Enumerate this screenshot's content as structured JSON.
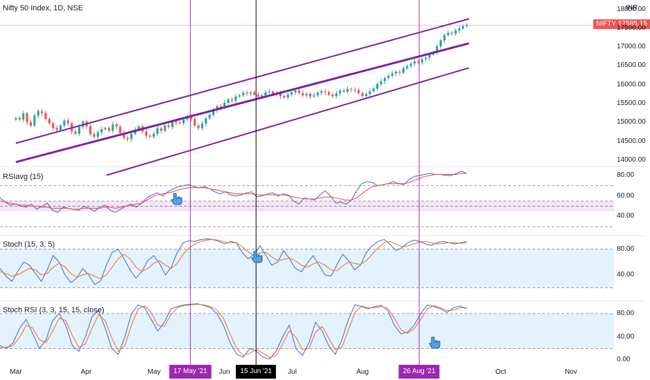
{
  "chart_data": [
    {
      "type": "candlestick",
      "title": "Nifty 50 Index, 1D, NSE",
      "symbol_label": "NIFTY",
      "last_price_label": "17585.15",
      "y_unit_label": "INR",
      "yticks": [
        "18000.00",
        "17500.00",
        "17000.00",
        "16500.00",
        "16000.00",
        "15500.00",
        "15000.00",
        "14500.00",
        "14000.00"
      ],
      "ytick_values": [
        18000,
        17500,
        17000,
        16500,
        16000,
        15500,
        15000,
        14500,
        14000
      ],
      "ylim": [
        13850,
        18250
      ],
      "x_labels": [
        "Mar",
        "Apr",
        "May",
        "Jun",
        "Jul",
        "Aug",
        "Oct",
        "Nov"
      ],
      "close_series": [
        15120,
        15080,
        15240,
        15010,
        14920,
        15180,
        15300,
        15250,
        15090,
        14980,
        14850,
        14800,
        14920,
        15050,
        14980,
        14760,
        14700,
        14880,
        15020,
        14900,
        14690,
        14620,
        14740,
        14820,
        14850,
        14780,
        14950,
        14890,
        14720,
        14590,
        14560,
        14700,
        14810,
        14900,
        14760,
        14650,
        14620,
        14700,
        14850,
        14780,
        14920,
        14880,
        15030,
        15000,
        14980,
        15080,
        15150,
        15090,
        14920,
        14850,
        14970,
        15110,
        15200,
        15320,
        15430,
        15390,
        15520,
        15610,
        15580,
        15690,
        15720,
        15790,
        15770,
        15800,
        15740,
        15680,
        15720,
        15800,
        15820,
        15750,
        15780,
        15700,
        15660,
        15740,
        15800,
        15850,
        15780,
        15720,
        15760,
        15690,
        15720,
        15790,
        15830,
        15810,
        15740,
        15700,
        15770,
        15850,
        15820,
        15890,
        15880,
        15860,
        15780,
        15700,
        15760,
        15830,
        15900,
        16020,
        16100,
        16180,
        16240,
        16300,
        16350,
        16320,
        16440,
        16500,
        16560,
        16620,
        16590,
        16680,
        16720,
        16800,
        16850,
        17020,
        17180,
        17320,
        17380,
        17360,
        17440,
        17500,
        17560,
        17585
      ],
      "channels": [
        {
          "name": "upper",
          "start": [
            14450,
            "2021-03-01"
          ],
          "end": [
            17750,
            "2021-09-17"
          ]
        },
        {
          "name": "middle",
          "start": [
            13950,
            "2021-03-01"
          ],
          "end": [
            17100,
            "2021-09-17"
          ]
        },
        {
          "name": "lower",
          "start": [
            13600,
            "2021-04-10"
          ],
          "end": [
            16450,
            "2021-09-17"
          ]
        }
      ],
      "markers": [
        {
          "label": "17 May '21",
          "date": "2021-05-17",
          "color": "#9c27b0"
        },
        {
          "label": "15 Jun '21",
          "date": "2021-06-15",
          "color": "#000000"
        },
        {
          "label": "26 Aug '21",
          "date": "2021-08-26",
          "color": "#9c27b0"
        }
      ],
      "colors": {
        "up": "#26a69a",
        "down": "#ef5350",
        "channel": "#7b1fa2",
        "last_price": "#ef5350"
      }
    },
    {
      "type": "line",
      "title": "RSIavg (15)",
      "yticks": [
        "80.00",
        "60.00",
        "40.00"
      ],
      "ytick_values": [
        80,
        60,
        40
      ],
      "ylim": [
        22,
        88
      ],
      "bands": [
        30,
        50,
        55,
        70
      ],
      "series": [
        {
          "color": "#5b6ad0",
          "values": [
            58,
            54,
            51,
            52,
            50,
            49,
            52,
            47,
            50,
            53,
            46,
            44,
            49,
            48,
            47,
            46,
            50,
            48,
            45,
            49,
            51,
            46,
            44,
            47,
            50,
            52,
            49,
            53,
            58,
            61,
            63,
            60,
            64,
            67,
            69,
            70,
            71,
            69,
            68,
            69,
            67,
            64,
            62,
            64,
            61,
            60,
            61,
            63,
            64,
            59,
            60,
            62,
            63,
            60,
            62,
            61,
            55,
            52,
            58,
            57,
            56,
            61,
            65,
            60,
            53,
            54,
            52,
            56,
            65,
            72,
            74,
            73,
            70,
            71,
            72,
            74,
            72,
            71,
            76,
            79,
            80,
            81,
            82,
            81,
            81,
            80,
            80,
            82,
            84,
            82
          ]
        },
        {
          "color": "#ef5350",
          "values": [
            55,
            54,
            53,
            52,
            51,
            51,
            50,
            50,
            49,
            49,
            48,
            48,
            48,
            48,
            47,
            47,
            48,
            48,
            48,
            48,
            49,
            49,
            48,
            49,
            50,
            51,
            52,
            53,
            56,
            59,
            61,
            62,
            63,
            64,
            66,
            67,
            68,
            68,
            68,
            68,
            67,
            66,
            65,
            64,
            63,
            62,
            62,
            62,
            62,
            61,
            61,
            61,
            61,
            61,
            61,
            60,
            59,
            58,
            57,
            57,
            57,
            58,
            59,
            59,
            58,
            57,
            56,
            56,
            58,
            62,
            66,
            69,
            70,
            71,
            72,
            72,
            72,
            72,
            73,
            75,
            77,
            79,
            80,
            81,
            81,
            81,
            81,
            81,
            82,
            82
          ]
        }
      ]
    },
    {
      "type": "line",
      "title": "Stoch (15, 3, 5)",
      "yticks": [
        "80.00",
        "40.00"
      ],
      "ytick_values": [
        80,
        40
      ],
      "ylim": [
        0,
        100
      ],
      "bands": [
        20,
        80
      ],
      "series": [
        {
          "color": "#5b6ad0",
          "values": [
            50,
            38,
            30,
            45,
            60,
            55,
            42,
            30,
            48,
            70,
            60,
            40,
            28,
            35,
            50,
            40,
            25,
            30,
            55,
            75,
            80,
            65,
            48,
            35,
            45,
            62,
            70,
            58,
            40,
            52,
            75,
            90,
            93,
            92,
            95,
            96,
            95,
            92,
            88,
            92,
            90,
            75,
            65,
            72,
            85,
            70,
            55,
            60,
            78,
            65,
            50,
            45,
            58,
            70,
            55,
            40,
            38,
            55,
            72,
            62,
            48,
            55,
            75,
            85,
            92,
            95,
            88,
            78,
            82,
            90,
            94,
            92,
            88,
            86,
            90,
            92,
            90,
            88,
            90,
            92
          ]
        },
        {
          "color": "#e67e22",
          "values": [
            45,
            42,
            38,
            40,
            45,
            50,
            48,
            40,
            42,
            52,
            58,
            52,
            42,
            36,
            40,
            42,
            38,
            34,
            40,
            52,
            65,
            72,
            65,
            52,
            45,
            50,
            58,
            62,
            55,
            50,
            58,
            72,
            82,
            88,
            92,
            94,
            95,
            94,
            91,
            90,
            90,
            84,
            76,
            70,
            74,
            75,
            68,
            62,
            64,
            66,
            62,
            55,
            52,
            57,
            60,
            55,
            48,
            46,
            54,
            60,
            58,
            56,
            62,
            72,
            82,
            90,
            92,
            88,
            84,
            85,
            88,
            91,
            92,
            90,
            88,
            89,
            90,
            90,
            89,
            90
          ]
        }
      ]
    },
    {
      "type": "line",
      "title": "Stoch RSI (3, 3, 15, 15, close)",
      "yticks": [
        "80.00",
        "40.00",
        "0.00"
      ],
      "ytick_values": [
        80,
        40,
        0
      ],
      "ylim": [
        -8,
        100
      ],
      "bands": [
        20,
        80
      ],
      "series": [
        {
          "color": "#5b6ad0",
          "values": [
            25,
            20,
            30,
            55,
            70,
            45,
            20,
            35,
            68,
            80,
            60,
            25,
            15,
            40,
            75,
            85,
            55,
            20,
            10,
            40,
            80,
            95,
            90,
            70,
            50,
            65,
            88,
            92,
            95,
            96,
            97,
            94,
            90,
            80,
            60,
            30,
            10,
            5,
            20,
            15,
            5,
            2,
            15,
            40,
            60,
            20,
            8,
            30,
            65,
            50,
            25,
            10,
            35,
            70,
            95,
            92,
            88,
            92,
            94,
            85,
            60,
            45,
            48,
            60,
            80,
            95,
            92,
            88,
            82,
            90,
            93,
            88
          ]
        },
        {
          "color": "#e67e22",
          "values": [
            22,
            22,
            25,
            40,
            60,
            55,
            35,
            30,
            50,
            72,
            68,
            42,
            22,
            28,
            55,
            78,
            68,
            38,
            15,
            25,
            60,
            88,
            93,
            82,
            60,
            58,
            78,
            90,
            94,
            95,
            96,
            95,
            92,
            86,
            72,
            45,
            20,
            8,
            12,
            18,
            12,
            5,
            8,
            28,
            50,
            40,
            18,
            20,
            48,
            58,
            38,
            18,
            22,
            52,
            82,
            93,
            90,
            90,
            92,
            89,
            72,
            52,
            46,
            54,
            70,
            88,
            94,
            90,
            85,
            86,
            90,
            90
          ]
        }
      ]
    }
  ],
  "colors": {
    "grid_band_rsi": "#f3e5f5",
    "grid_band_stoch": "#e3f2fd",
    "pane_border": "#e0e3eb",
    "dashed": "#787b86"
  }
}
